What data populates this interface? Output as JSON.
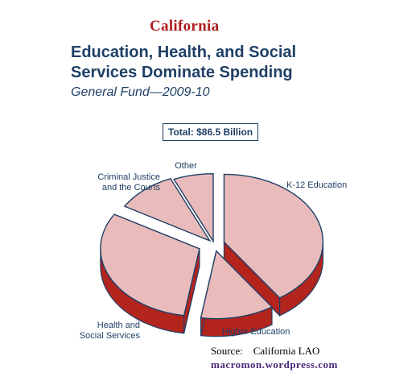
{
  "header": {
    "state": "California",
    "title_line1": "Education, Health, and Social",
    "title_line2": "Services Dominate Spending",
    "subtitle": "General Fund—2009-10",
    "total": "Total:  $86.5 Billion"
  },
  "chart_data": {
    "type": "pie",
    "exploded": true,
    "style": "3d",
    "slices": [
      {
        "label_lines": [
          "K-12 Education"
        ],
        "value": 40.5
      },
      {
        "label_lines": [
          "Higher Education"
        ],
        "value": 12
      },
      {
        "label_lines": [
          "Health and",
          "Social Services"
        ],
        "value": 31
      },
      {
        "label_lines": [
          "Criminal Justice",
          "and the Courts"
        ],
        "value": 10
      },
      {
        "label_lines": [
          "Other"
        ],
        "value": 6.5
      }
    ]
  },
  "colors": {
    "slice_top": "#e9bcbb",
    "slice_side": "#b3241d",
    "outline": "#1f3f66",
    "title": "#1f3f66",
    "state": "#b01c1c",
    "credit": "#4b2a7a"
  },
  "footer": {
    "source": "Source:    California LAO",
    "credit": "macromon.wordpress.com"
  }
}
